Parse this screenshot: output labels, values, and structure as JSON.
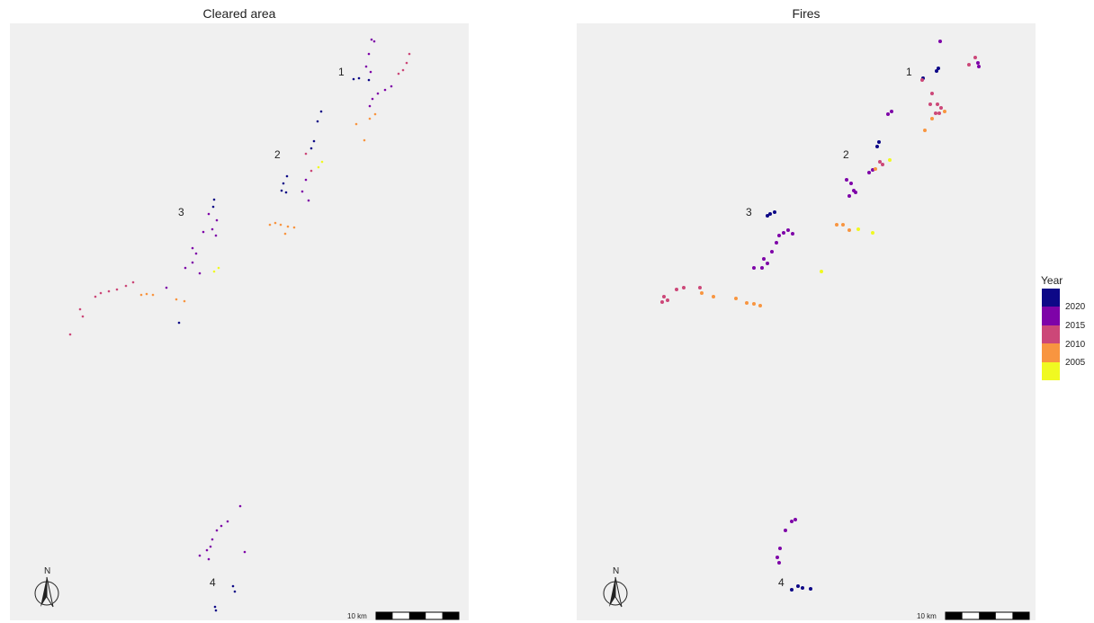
{
  "panels": {
    "left": {
      "title": "Cleared area"
    },
    "right": {
      "title": "Fires"
    }
  },
  "region_labels": [
    "1",
    "2",
    "3",
    "4"
  ],
  "north_arrow": {
    "label": "N",
    "icon": "north-arrow-icon"
  },
  "scale_bar": {
    "label": "10 km"
  },
  "legend": {
    "title": "Year",
    "ticks": [
      "2020",
      "2015",
      "2010",
      "2005"
    ],
    "colors": [
      "#0d0887",
      "#7e03a8",
      "#cc4778",
      "#f89540",
      "#f0f921"
    ]
  }
}
